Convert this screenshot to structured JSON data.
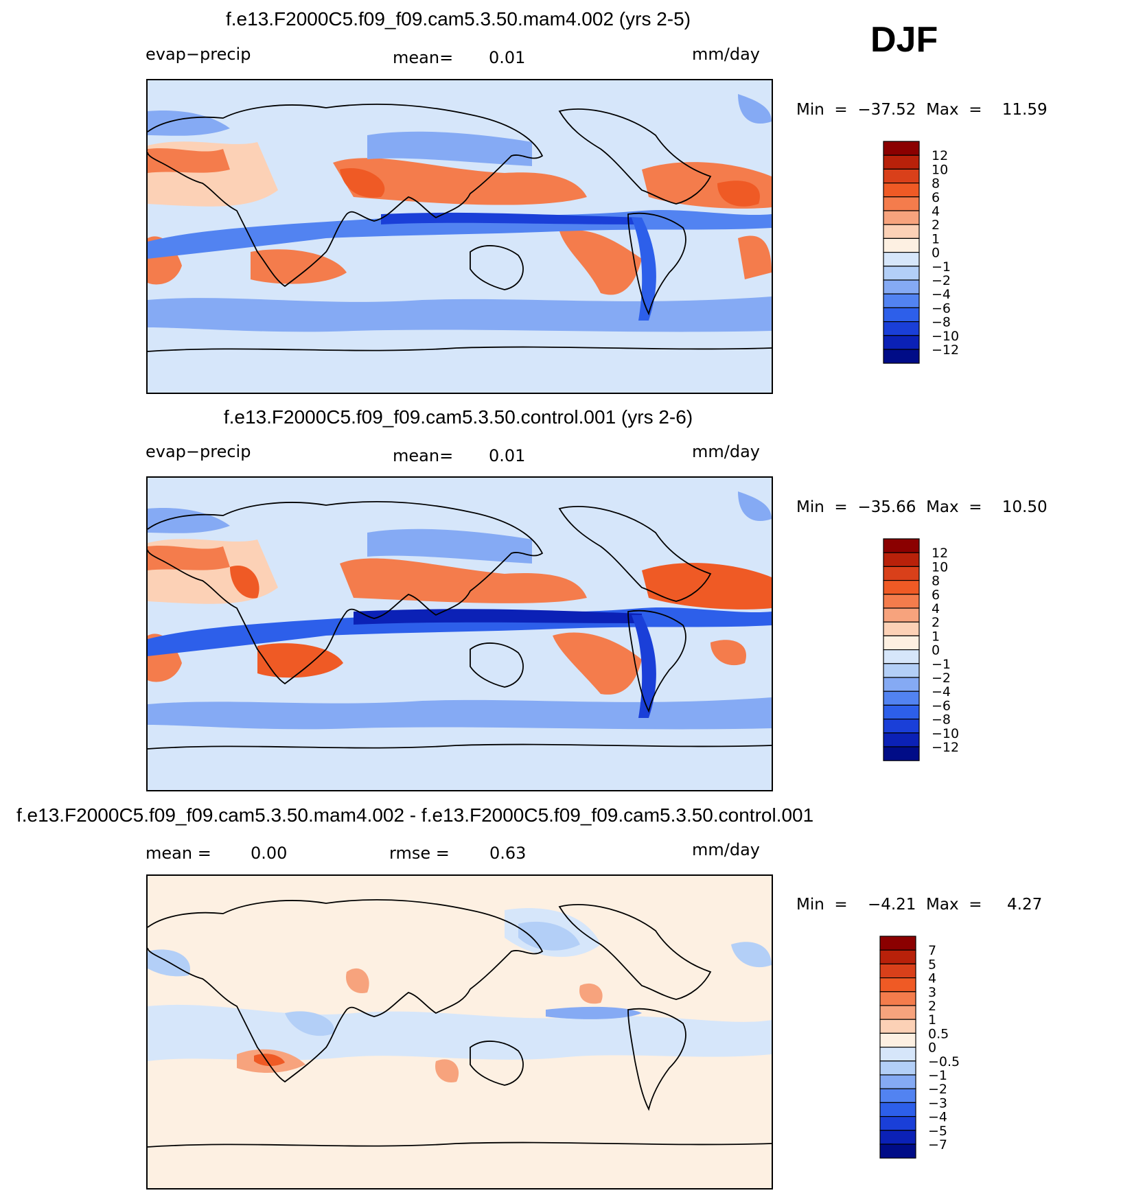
{
  "season_label": "DJF",
  "panels": [
    {
      "title": "f.e13.F2000C5.f09_f09.cam5.3.50.mam4.002 (yrs 2-5)",
      "left_label": "evap−precip",
      "mean_label": "mean=",
      "mean_value": "0.01",
      "units": "mm/day",
      "minmax": "Min  =  −37.52  Max  =    11.59"
    },
    {
      "title": "f.e13.F2000C5.f09_f09.cam5.3.50.control.001 (yrs 2-6)",
      "left_label": "evap−precip",
      "mean_label": "mean=",
      "mean_value": "0.01",
      "units": "mm/day",
      "minmax": "Min  =  −35.66  Max  =    10.50"
    },
    {
      "title": "f.e13.F2000C5.f09_f09.cam5.3.50.mam4.002 - f.e13.F2000C5.f09_f09.cam5.3.50.control.001",
      "mean_label": "mean =",
      "mean_value": "0.00",
      "rmse_label": "rmse =",
      "rmse_value": "0.63",
      "units": "mm/day",
      "minmax": "Min  =    −4.21  Max  =     4.27"
    }
  ],
  "chart_data": [
    {
      "type": "heatmap",
      "title": "f.e13.F2000C5.f09_f09.cam5.3.50.mam4.002 (yrs 2-5)",
      "variable": "evap−precip",
      "units": "mm/day",
      "mean": 0.01,
      "min": -37.52,
      "max": 11.59,
      "colorbar_levels": [
        "12",
        "10",
        "8",
        "6",
        "4",
        "2",
        "1",
        "0",
        "−1",
        "−2",
        "−4",
        "−6",
        "−8",
        "−10",
        "−12"
      ],
      "colors": [
        "#8b0000",
        "#b8210a",
        "#d9401a",
        "#ef5a25",
        "#f47c4c",
        "#f7a37d",
        "#fcd1b6",
        "#fdf0e2",
        "#d6e6fa",
        "#b3cff7",
        "#85aaf4",
        "#5283f1",
        "#2d5fea",
        "#1a3fd8",
        "#0b21b6",
        "#000c87"
      ]
    },
    {
      "type": "heatmap",
      "title": "f.e13.F2000C5.f09_f09.cam5.3.50.control.001 (yrs 2-6)",
      "variable": "evap−precip",
      "units": "mm/day",
      "mean": 0.01,
      "min": -35.66,
      "max": 10.5,
      "colorbar_levels": [
        "12",
        "10",
        "8",
        "6",
        "4",
        "2",
        "1",
        "0",
        "−1",
        "−2",
        "−4",
        "−6",
        "−8",
        "−10",
        "−12"
      ],
      "colors": [
        "#8b0000",
        "#b8210a",
        "#d9401a",
        "#ef5a25",
        "#f47c4c",
        "#f7a37d",
        "#fcd1b6",
        "#fdf0e2",
        "#d6e6fa",
        "#b3cff7",
        "#85aaf4",
        "#5283f1",
        "#2d5fea",
        "#1a3fd8",
        "#0b21b6",
        "#000c87"
      ]
    },
    {
      "type": "heatmap",
      "title": "f.e13.F2000C5.f09_f09.cam5.3.50.mam4.002 - f.e13.F2000C5.f09_f09.cam5.3.50.control.001",
      "units": "mm/day",
      "mean": 0.0,
      "rmse": 0.63,
      "min": -4.21,
      "max": 4.27,
      "colorbar_levels": [
        "7",
        "5",
        "4",
        "3",
        "2",
        "1",
        "0.5",
        "0",
        "−0.5",
        "−1",
        "−2",
        "−3",
        "−4",
        "−5",
        "−7"
      ],
      "colors": [
        "#8b0000",
        "#b8210a",
        "#d9401a",
        "#ef5a25",
        "#f47c4c",
        "#f7a37d",
        "#fcd1b6",
        "#fdf0e2",
        "#d6e6fa",
        "#b3cff7",
        "#85aaf4",
        "#5283f1",
        "#2d5fea",
        "#1a3fd8",
        "#0b21b6",
        "#000c87"
      ]
    }
  ]
}
